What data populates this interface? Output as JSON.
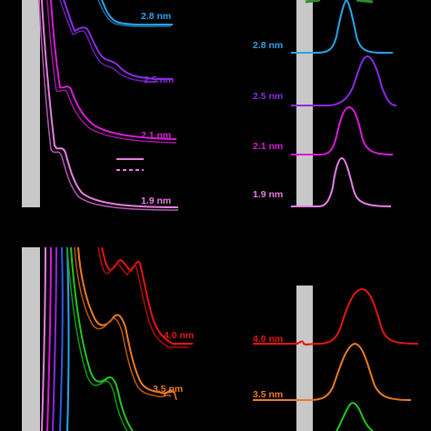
{
  "chart_data": [
    {
      "type": "line",
      "panel": "top-left",
      "series": [
        {
          "name": "2.8 nm",
          "color": "#2aa3e8",
          "features": [
            {
              "x": 0.18,
              "y": 0.96
            }
          ],
          "end_y": 0.88
        },
        {
          "name": "2.5 nm",
          "color": "#8a2be2",
          "features": [
            {
              "x": 0.42,
              "y": 0.78
            },
            {
              "x": 0.68,
              "y": 0.64
            }
          ],
          "end_y": 0.66
        },
        {
          "name": "2.1 nm",
          "color": "#d81bd6",
          "features": [
            {
              "x": 0.32,
              "y": 0.56
            }
          ],
          "end_y": 0.35
        },
        {
          "name": "1.9 nm",
          "color": "#e77fe3",
          "features": [
            {
              "x": 0.28,
              "y": 0.29
            }
          ],
          "end_y": 0.04
        }
      ]
    },
    {
      "type": "line",
      "panel": "top-right",
      "series": [
        {
          "name": "2.8 nm",
          "color": "#2aa3e8",
          "peak_x": 0.48,
          "baseline_y": 0.78
        },
        {
          "name": "2.5 nm",
          "color": "#8a2be2",
          "peak_x": 0.55,
          "baseline_y": 0.53
        },
        {
          "name": "2.1 nm",
          "color": "#d81bd6",
          "peak_x": 0.5,
          "baseline_y": 0.3
        },
        {
          "name": "1.9 nm",
          "color": "#e77fe3",
          "peak_x": 0.45,
          "baseline_y": 0.04
        }
      ]
    },
    {
      "type": "line",
      "panel": "bottom-left",
      "series": [
        {
          "name": "4.0 nm",
          "color": "#e8150e",
          "features": [
            {
              "x": 0.7,
              "y": 0.9
            },
            {
              "x": 0.84,
              "y": 0.86
            }
          ],
          "end_y": 0.5
        },
        {
          "name": "3.5 nm",
          "color": "#ee7a1f",
          "features": [
            {
              "x": 0.66,
              "y": 0.62
            }
          ],
          "end_y": 0.22
        },
        {
          "name": "",
          "color": "#21c721",
          "features": [
            {
              "x": 0.63,
              "y": 0.28
            }
          ],
          "end_y": 0.0
        }
      ]
    },
    {
      "type": "line",
      "panel": "bottom-right",
      "series": [
        {
          "name": "4.0 nm",
          "color": "#e8150e",
          "peak_x": 0.55,
          "baseline_y": 0.6
        },
        {
          "name": "3.5 nm",
          "color": "#ee7a1f",
          "peak_x": 0.55,
          "baseline_y": 0.23
        },
        {
          "name": "",
          "color": "#21c721",
          "peak_x": 0.55,
          "baseline_y": 0.0
        }
      ]
    }
  ],
  "labels": {
    "tl_28": "2.8 nm",
    "tl_25": "2.5 nm",
    "tl_21": "2.1 nm",
    "tl_19": "1.9 nm",
    "tr_28": "2.8 nm",
    "tr_25": "2.5 nm",
    "tr_21": "2.1 nm",
    "tr_19": "1.9 nm",
    "bl_40": "4.0 nm",
    "bl_35": "3.5 nm",
    "br_40": "4.0 nm",
    "br_35": "3.5 nm"
  },
  "colors": {
    "background": "#000000",
    "shade": "#c8c8c8",
    "legend_line": "#e77fe3"
  }
}
